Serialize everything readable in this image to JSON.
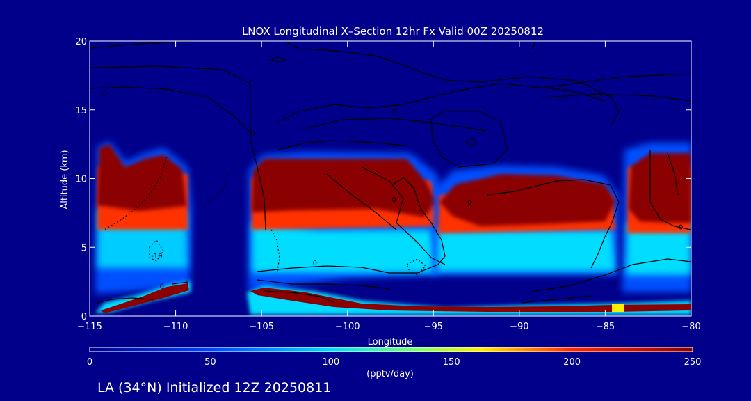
{
  "chart_data": {
    "type": "heatmap",
    "title": "LNOX Longitudinal X–Section 12hr  Fx Valid 00Z 20250812",
    "xlabel": "Longitude",
    "ylabel": "Altitude (km)",
    "xlim": [
      -115,
      -80
    ],
    "ylim": [
      0,
      20
    ],
    "x_ticks": [
      {
        "value": -115,
        "label": "−115"
      },
      {
        "value": -110,
        "label": "−110"
      },
      {
        "value": -105,
        "label": "−105"
      },
      {
        "value": -100,
        "label": "−100"
      },
      {
        "value": -95,
        "label": "−95"
      },
      {
        "value": -90,
        "label": "−90"
      },
      {
        "value": -85,
        "label": "−85"
      },
      {
        "value": -80,
        "label": "−80"
      }
    ],
    "y_ticks": [
      {
        "value": 0,
        "label": "0"
      },
      {
        "value": 5,
        "label": "5"
      },
      {
        "value": 10,
        "label": "10"
      },
      {
        "value": 15,
        "label": "15"
      },
      {
        "value": 20,
        "label": "20"
      }
    ],
    "colorbar": {
      "label": "(pptv/day)",
      "range": [
        0,
        250
      ],
      "ticks": [
        {
          "value": 0,
          "label": "0"
        },
        {
          "value": 50,
          "label": "50"
        },
        {
          "value": 100,
          "label": "100"
        },
        {
          "value": 150,
          "label": "150"
        },
        {
          "value": 200,
          "label": "200"
        },
        {
          "value": 250,
          "label": "250"
        }
      ]
    },
    "storm_columns": [
      {
        "name": "west column",
        "lon_range": [
          -115.3,
          -109.6
        ],
        "peak_alt_range": [
          7.5,
          12.5
        ],
        "peak_value": 250
      },
      {
        "name": "central column",
        "lon_range": [
          -105.6,
          -93.8
        ],
        "peak_alt_range": [
          7.2,
          11.5
        ],
        "peak_value": 250
      },
      {
        "name": "east-central column",
        "lon_range": [
          -93.8,
          -84.6
        ],
        "peak_alt_range": [
          6.6,
          10.1
        ],
        "peak_value": 250
      },
      {
        "name": "east column",
        "lon_range": [
          -84.3,
          -80
        ],
        "peak_alt_range": [
          7.3,
          12.0
        ],
        "peak_value": 250
      }
    ],
    "contour_labels": [
      {
        "text": "0",
        "lon": -114.1,
        "alt": 16.2
      },
      {
        "text": "0",
        "lon": -105.5,
        "alt": 13.3
      },
      {
        "text": "0",
        "lon": -97.3,
        "alt": 14.9
      },
      {
        "text": "0",
        "lon": -97.3,
        "alt": 8.5
      },
      {
        "text": "0",
        "lon": -92.9,
        "alt": 8.3
      },
      {
        "text": "0",
        "lon": -101.9,
        "alt": 3.9
      },
      {
        "text": "0",
        "lon": -110.8,
        "alt": 2.2
      },
      {
        "text": "0",
        "lon": -80.6,
        "alt": 6.5
      },
      {
        "text": "-10",
        "lon": -111.1,
        "alt": 4.4
      }
    ]
  },
  "footer": {
    "location_text": "LA (34°N) Initialized 12Z 20250811"
  },
  "colors": {
    "background": "#00008b",
    "text": "#ffffff",
    "contour": "#000000"
  }
}
